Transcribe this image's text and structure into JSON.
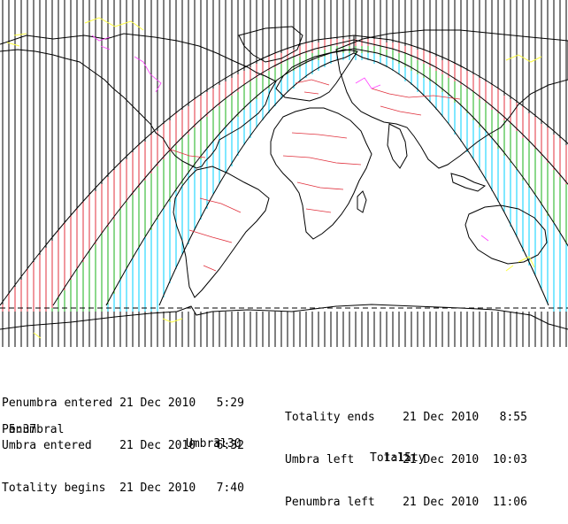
{
  "eclipse_times": {
    "left": [
      {
        "label": "Penumbra entered",
        "date": "21 Dec 2010",
        "time": "5:29"
      },
      {
        "label": "Umbra entered",
        "date": "21 Dec 2010",
        "time": "6:32"
      },
      {
        "label": "Totality begins",
        "date": "21 Dec 2010",
        "time": "7:40"
      }
    ],
    "right": [
      {
        "label": "Totality ends",
        "date": "21 Dec 2010",
        "time": "8:55"
      },
      {
        "label": "Umbra left",
        "date": "21 Dec 2010",
        "time": "10:03"
      },
      {
        "label": "Penumbra left",
        "date": "21 Dec 2010",
        "time": "11:06"
      }
    ]
  },
  "durations": {
    "penumbral": {
      "label": "Penumbral",
      "value": "5:37"
    },
    "umbral": {
      "label": "Umbral",
      "value": "3:30"
    },
    "totality": {
      "label": "Totality",
      "value": "1:15"
    }
  },
  "colors": {
    "background": "#ffffff",
    "hatch": "#000000",
    "penumbra_zone": "#e0303c",
    "umbra_zone": "#19b219",
    "totality_zone": "#00d2ff",
    "coastline": "#000000",
    "borders": "#e0303c",
    "rivers_lakes": "#ffff40",
    "states": "#ff40ff"
  }
}
